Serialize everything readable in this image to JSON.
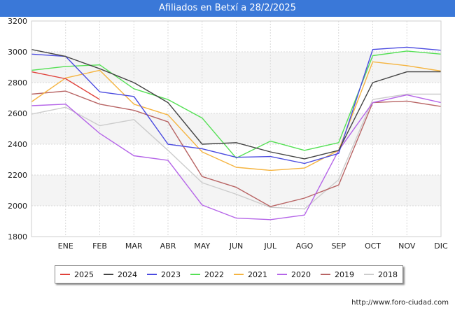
{
  "title": "Afiliados en Betxí a 28/2/2025",
  "source": "http://www.foro-ciudad.com",
  "chart_data": {
    "type": "line",
    "categories": [
      "",
      "ENE",
      "FEB",
      "MAR",
      "ABR",
      "MAY",
      "JUN",
      "JUL",
      "AGO",
      "SEP",
      "OCT",
      "NOV",
      "DIC"
    ],
    "ylim": [
      1800,
      3200
    ],
    "yticks": [
      1800,
      2000,
      2200,
      2400,
      2600,
      2800,
      3000,
      3200
    ],
    "grid": "horizontal, alternating bands",
    "legend_position": "bottom",
    "series": [
      {
        "name": "2025",
        "color": "#e0413a",
        "values": [
          2870,
          2825,
          2690,
          null,
          null,
          null,
          null,
          null,
          null,
          null,
          null,
          null,
          null
        ]
      },
      {
        "name": "2024",
        "color": "#444444",
        "values": [
          3015,
          2970,
          2890,
          2800,
          2670,
          2400,
          2410,
          2350,
          2305,
          2360,
          2800,
          2870,
          2870
        ]
      },
      {
        "name": "2023",
        "color": "#4a4ae0",
        "values": [
          2985,
          2970,
          2740,
          2710,
          2400,
          2370,
          2315,
          2320,
          2275,
          2340,
          3015,
          3030,
          3010
        ]
      },
      {
        "name": "2022",
        "color": "#55e055",
        "values": [
          2880,
          2905,
          2915,
          2760,
          2690,
          2570,
          2310,
          2420,
          2360,
          2410,
          2975,
          3005,
          2985
        ]
      },
      {
        "name": "2021",
        "color": "#f5b440",
        "values": [
          2675,
          2830,
          2880,
          2660,
          2590,
          2350,
          2250,
          2230,
          2245,
          2360,
          2935,
          2910,
          2875
        ]
      },
      {
        "name": "2020",
        "color": "#b565e8",
        "values": [
          2650,
          2660,
          2470,
          2325,
          2295,
          2005,
          1920,
          1910,
          1940,
          2360,
          2670,
          2720,
          2670
        ]
      },
      {
        "name": "2019",
        "color": "#b86464",
        "values": [
          2725,
          2745,
          2660,
          2620,
          2545,
          2190,
          2120,
          1995,
          2050,
          2135,
          2670,
          2680,
          2645
        ]
      },
      {
        "name": "2018",
        "color": "#cccccc",
        "values": [
          2595,
          2640,
          2520,
          2560,
          2360,
          2150,
          2075,
          1990,
          1980,
          2170,
          2690,
          2725,
          2725
        ]
      }
    ]
  }
}
